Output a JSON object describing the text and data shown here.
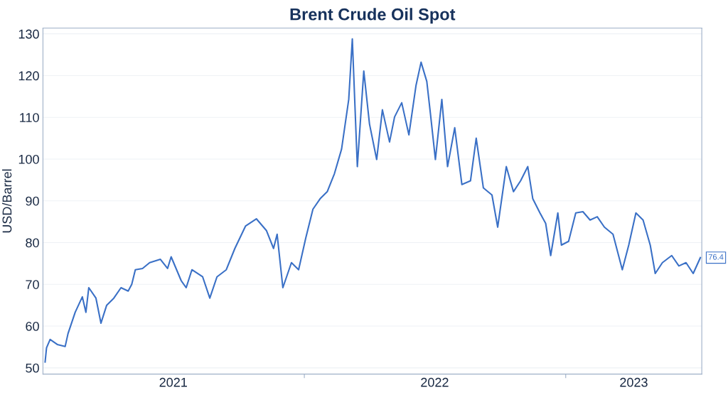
{
  "chart_data": {
    "type": "line",
    "title": "Brent Crude Oil Spot",
    "ylabel": "USD/Barrel",
    "x": [
      "2021-01-04",
      "2021-01-06",
      "2021-01-11",
      "2021-01-21",
      "2021-02-01",
      "2021-02-05",
      "2021-02-15",
      "2021-02-25",
      "2021-03-02",
      "2021-03-06",
      "2021-03-16",
      "2021-03-23",
      "2021-03-31",
      "2021-04-10",
      "2021-04-20",
      "2021-04-30",
      "2021-05-05",
      "2021-05-10",
      "2021-05-20",
      "2021-05-30",
      "2021-06-14",
      "2021-06-24",
      "2021-06-29",
      "2021-07-13",
      "2021-07-20",
      "2021-07-28",
      "2021-08-12",
      "2021-08-22",
      "2021-09-01",
      "2021-09-14",
      "2021-09-26",
      "2021-10-11",
      "2021-10-26",
      "2021-11-09",
      "2021-11-19",
      "2021-11-24",
      "2021-12-02",
      "2021-12-14",
      "2021-12-24",
      "2022-01-03",
      "2022-01-13",
      "2022-01-23",
      "2022-02-02",
      "2022-02-12",
      "2022-02-22",
      "2022-03-04",
      "2022-03-09",
      "2022-03-16",
      "2022-03-25",
      "2022-04-02",
      "2022-04-12",
      "2022-04-20",
      "2022-04-30",
      "2022-05-07",
      "2022-05-17",
      "2022-05-27",
      "2022-06-06",
      "2022-06-13",
      "2022-06-21",
      "2022-06-26",
      "2022-07-03",
      "2022-07-12",
      "2022-07-20",
      "2022-07-30",
      "2022-08-09",
      "2022-08-21",
      "2022-08-29",
      "2022-09-08",
      "2022-09-20",
      "2022-09-28",
      "2022-10-10",
      "2022-10-20",
      "2022-10-30",
      "2022-11-09",
      "2022-11-16",
      "2022-11-26",
      "2022-12-04",
      "2022-12-11",
      "2022-12-21",
      "2022-12-26",
      "2023-01-05",
      "2023-01-15",
      "2023-01-25",
      "2023-02-04",
      "2023-02-14",
      "2023-02-24",
      "2023-03-08",
      "2023-03-21",
      "2023-03-30",
      "2023-04-09",
      "2023-04-19",
      "2023-04-29",
      "2023-05-06",
      "2023-05-16",
      "2023-05-29",
      "2023-06-08",
      "2023-06-18",
      "2023-06-28",
      "2023-07-08"
    ],
    "series": [
      {
        "color": "#3a70c6",
        "values": [
          51.4,
          54.8,
          56.8,
          55.6,
          55.1,
          58.2,
          63.3,
          67,
          63.3,
          69.2,
          66.7,
          60.7,
          65,
          66.7,
          69.2,
          68.4,
          70,
          73.5,
          73.8,
          75.2,
          76,
          73.8,
          76.6,
          70.9,
          69.2,
          73.5,
          71.8,
          66.7,
          71.8,
          73.5,
          78.6,
          84,
          85.7,
          82.9,
          78.6,
          82,
          69.2,
          75.2,
          73.5,
          81.1,
          88,
          90.5,
          92.2,
          96.5,
          102.4,
          114.3,
          128.8,
          98.2,
          121.1,
          108.4,
          99.9,
          111.8,
          104.1,
          110.1,
          113.5,
          105.8,
          117.7,
          123.2,
          118.6,
          111,
          99.9,
          114.3,
          98.2,
          107.5,
          93.9,
          94.8,
          105,
          93.1,
          91.4,
          83.7,
          98.2,
          92.2,
          94.8,
          98.2,
          90.5,
          87.1,
          84.6,
          76.9,
          87.1,
          79.4,
          80.3,
          87.1,
          87.4,
          85.4,
          86.2,
          83.7,
          82,
          73.5,
          79.4,
          87.1,
          85.4,
          79.4,
          72.6,
          75.2,
          76.9,
          74.4,
          75.2,
          72.6,
          76.4
        ]
      }
    ],
    "xlim": [
      "2021-01-01",
      "2023-07-10"
    ],
    "xticks": [
      {
        "value": "2021-07-02",
        "label": "2021"
      },
      {
        "value": "2022-01-01",
        "label": null
      },
      {
        "value": "2022-07-02",
        "label": "2022"
      },
      {
        "value": "2023-01-01",
        "label": null
      },
      {
        "value": "2023-04-06",
        "label": "2023"
      }
    ],
    "ylim": [
      48.5,
      131.4
    ],
    "yticks": [
      50,
      60,
      70,
      80,
      90,
      100,
      110,
      120,
      130
    ],
    "grid": "y",
    "legend": false,
    "marker": "none",
    "line_style": "solid",
    "annotations": [
      {
        "text": "76.4",
        "x": "2023-07-08",
        "y": 76.4
      }
    ]
  }
}
